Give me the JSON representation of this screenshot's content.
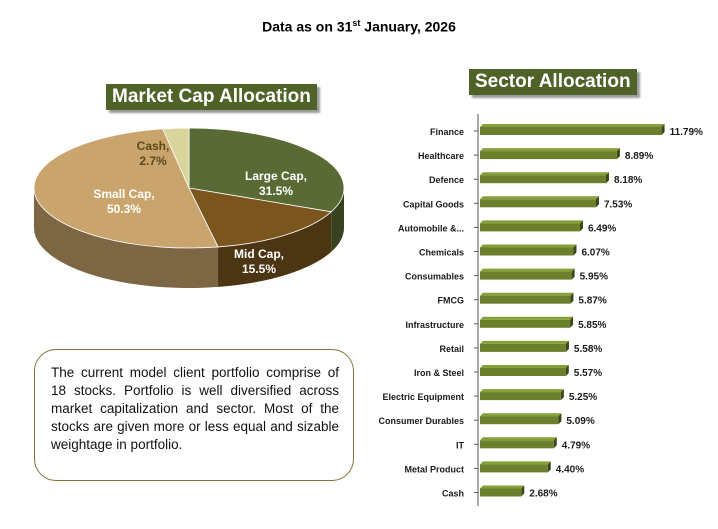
{
  "header": {
    "prefix": "Data as on 31",
    "sup": "st",
    "suffix": " January, 2026"
  },
  "market_cap_title": "Market Cap Allocation",
  "sector_title": "Sector Allocation",
  "description": "The current model client portfolio comprise of 18 stocks. Portfolio is well diversified across market capitalization and sector. Most of the stocks are given more or less equal and sizable weightage in portfolio.",
  "colors": {
    "large_cap": "#5a6a35",
    "mid_cap": "#7a561e",
    "small_cap": "#c9a46c",
    "cash": "#d8d59a",
    "bar": "#6b7f2c",
    "title_bg": "#4f6228"
  },
  "chart_data": [
    {
      "type": "pie",
      "title": "Market Cap Allocation",
      "categories": [
        "Large Cap",
        "Mid Cap",
        "Small Cap",
        "Cash"
      ],
      "values": [
        31.5,
        15.5,
        50.3,
        2.7
      ],
      "labels": [
        [
          "Large Cap,",
          "31.5%"
        ],
        [
          "Mid Cap,",
          "15.5%"
        ],
        [
          "Small Cap,",
          "50.3%"
        ],
        [
          "Cash,",
          "2.7%"
        ]
      ]
    },
    {
      "type": "bar",
      "orientation": "horizontal",
      "title": "Sector Allocation",
      "categories": [
        "Finance",
        "Healthcare",
        "Defence",
        "Capital Goods",
        "Automobile &...",
        "Chemicals",
        "Consumables",
        "FMCG",
        "Infrastructure",
        "Retail",
        "Iron & Steel",
        "Electric Equipment",
        "Consumer Durables",
        "IT",
        "Metal Product",
        "Cash"
      ],
      "values": [
        11.79,
        8.89,
        8.18,
        7.53,
        6.49,
        6.07,
        5.95,
        5.87,
        5.85,
        5.58,
        5.57,
        5.25,
        5.09,
        4.79,
        4.4,
        2.68
      ],
      "value_labels": [
        "11.79%",
        "8.89%",
        "8.18%",
        "7.53%",
        "6.49%",
        "6.07%",
        "5.95%",
        "5.87%",
        "5.85%",
        "5.58%",
        "5.57%",
        "5.25%",
        "5.09%",
        "4.79%",
        "4.40%",
        "2.68%"
      ],
      "xlim": [
        0,
        12.5
      ]
    }
  ]
}
